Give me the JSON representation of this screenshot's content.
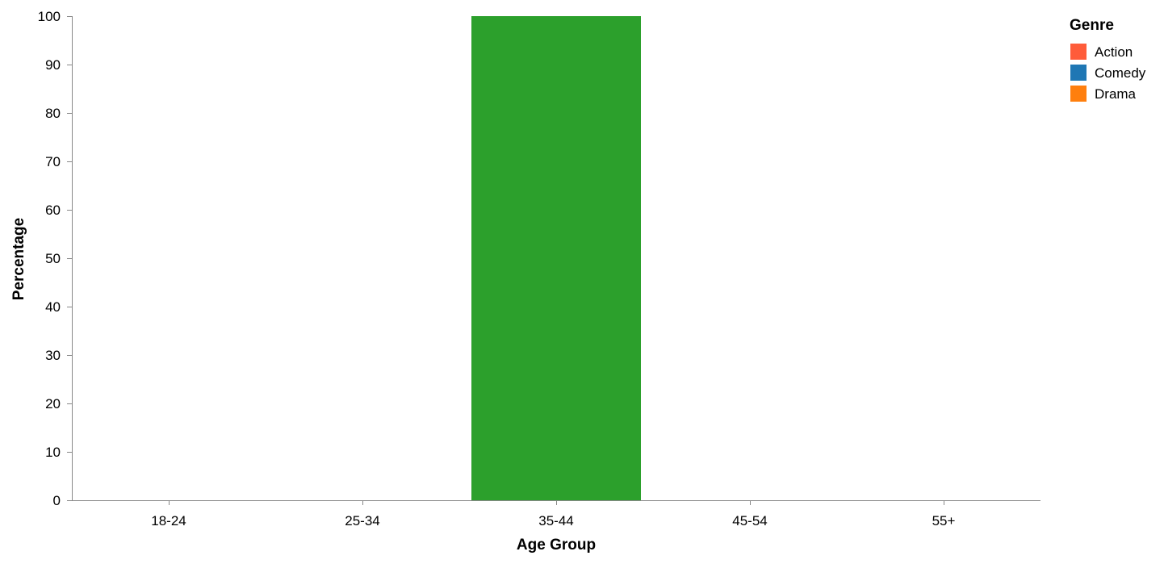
{
  "chart_data": {
    "type": "bar",
    "title": "",
    "xlabel": "Age Group",
    "ylabel": "Percentage",
    "categories": [
      "18-24",
      "25-34",
      "35-44",
      "45-54",
      "55+"
    ],
    "series": [
      {
        "name": "Action",
        "color": "#ff5c3a",
        "values": [
          0,
          0,
          0,
          0,
          0
        ]
      },
      {
        "name": "Comedy",
        "color": "#1f77b4",
        "values": [
          0,
          0,
          0,
          0,
          0
        ]
      },
      {
        "name": "Drama",
        "color": "#ff7f0e",
        "values": [
          0,
          0,
          0,
          0,
          0
        ]
      }
    ],
    "highlight_bar": {
      "category": "35-44",
      "value": 100,
      "color": "#2ca02c"
    },
    "ylim": [
      0,
      100
    ],
    "yticks": [
      0,
      10,
      20,
      30,
      40,
      50,
      60,
      70,
      80,
      90,
      100
    ],
    "grid": false,
    "legend": {
      "title": "Genre",
      "placement": "top-right",
      "entries": [
        {
          "label": "Action",
          "color": "#ff5c3a"
        },
        {
          "label": "Comedy",
          "color": "#1f77b4"
        },
        {
          "label": "Drama",
          "color": "#ff7f0e"
        }
      ]
    },
    "axis_color": "#888888"
  }
}
